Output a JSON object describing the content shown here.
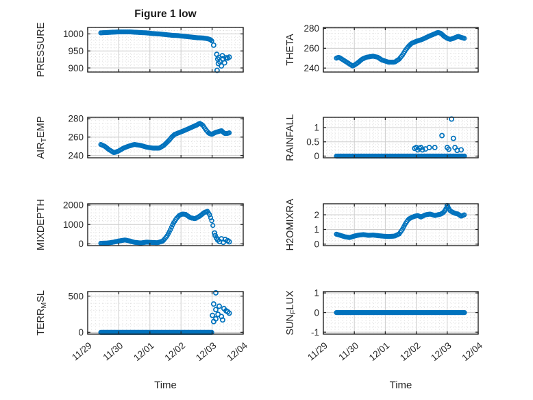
{
  "title": "Figure 1 low",
  "x_axis": {
    "label": "Time",
    "tick_labels": [
      "11/29",
      "11/30",
      "12/01",
      "12/02",
      "12/03",
      "12/04"
    ],
    "range_days": [
      0,
      5
    ],
    "minor_divisions_per_day": 8
  },
  "colors": {
    "marker": "#0072BD",
    "axis": "#262626",
    "major_grid": "#cccccc",
    "minor_grid": "#d9d9d9",
    "text": "#262626"
  },
  "chart_data": [
    {
      "id": "pressure",
      "type": "scatter",
      "ylabel": "PRESSURE",
      "ylabel_parts": [
        {
          "t": "PRESSURE"
        }
      ],
      "ylim": [
        888,
        1019
      ],
      "yticks": [
        900,
        950,
        1000
      ],
      "y_minor_step": 10,
      "dense": {
        "step_days": 0.035,
        "anchors": [
          [
            0.42,
            1003
          ],
          [
            0.6,
            1004
          ],
          [
            0.8,
            1005
          ],
          [
            1.0,
            1006
          ],
          [
            1.2,
            1006
          ],
          [
            1.35,
            1006
          ],
          [
            1.5,
            1005
          ],
          [
            1.7,
            1004
          ],
          [
            1.9,
            1003
          ],
          [
            2.1,
            1001
          ],
          [
            2.3,
            1000
          ],
          [
            2.5,
            998
          ],
          [
            2.7,
            996
          ],
          [
            2.9,
            995
          ],
          [
            3.1,
            993
          ],
          [
            3.3,
            991
          ],
          [
            3.5,
            989
          ],
          [
            3.7,
            988
          ],
          [
            3.85,
            986
          ],
          [
            3.95,
            983
          ],
          [
            4.02,
            977
          ]
        ]
      },
      "scatter_points": [
        [
          4.05,
          967
        ],
        [
          4.15,
          940
        ],
        [
          4.16,
          893
        ],
        [
          4.18,
          926
        ],
        [
          4.2,
          913
        ],
        [
          4.22,
          931
        ],
        [
          4.25,
          918
        ],
        [
          4.3,
          906
        ],
        [
          4.33,
          936
        ],
        [
          4.35,
          927
        ],
        [
          4.4,
          915
        ],
        [
          4.45,
          930
        ],
        [
          4.5,
          929
        ],
        [
          4.55,
          932
        ]
      ]
    },
    {
      "id": "theta",
      "type": "scatter",
      "ylabel": "THETA",
      "ylabel_parts": [
        {
          "t": "THETA"
        }
      ],
      "ylim": [
        236,
        281
      ],
      "yticks": [
        240,
        260,
        280
      ],
      "y_minor_step": 5,
      "dense": {
        "step_days": 0.035,
        "anchors": [
          [
            0.42,
            250
          ],
          [
            0.5,
            251
          ],
          [
            0.6,
            249
          ],
          [
            0.75,
            246
          ],
          [
            0.95,
            242
          ],
          [
            1.1,
            245
          ],
          [
            1.25,
            249
          ],
          [
            1.4,
            251
          ],
          [
            1.6,
            252
          ],
          [
            1.75,
            251
          ],
          [
            1.9,
            248
          ],
          [
            2.1,
            246
          ],
          [
            2.3,
            246
          ],
          [
            2.45,
            249
          ],
          [
            2.55,
            253
          ],
          [
            2.65,
            258
          ],
          [
            2.75,
            262
          ],
          [
            2.85,
            265
          ],
          [
            3.0,
            267
          ],
          [
            3.2,
            269
          ],
          [
            3.4,
            272
          ],
          [
            3.55,
            274
          ],
          [
            3.7,
            276
          ],
          [
            3.8,
            275
          ],
          [
            3.9,
            272
          ],
          [
            4.0,
            270
          ],
          [
            4.1,
            269
          ],
          [
            4.2,
            270
          ],
          [
            4.35,
            272
          ],
          [
            4.45,
            271
          ],
          [
            4.55,
            270
          ]
        ]
      },
      "scatter_points": []
    },
    {
      "id": "air-temp",
      "type": "scatter",
      "ylabel": "AIR_TEMP",
      "ylabel_parts": [
        {
          "t": "AIR"
        },
        {
          "t": "T",
          "sub": true
        },
        {
          "t": "EMP"
        }
      ],
      "ylim": [
        237.5,
        281.5
      ],
      "yticks": [
        240,
        260,
        280
      ],
      "y_minor_step": 5,
      "dense": {
        "step_days": 0.035,
        "anchors": [
          [
            0.42,
            252
          ],
          [
            0.55,
            250
          ],
          [
            0.7,
            246
          ],
          [
            0.85,
            243
          ],
          [
            1.0,
            245
          ],
          [
            1.15,
            248
          ],
          [
            1.3,
            250
          ],
          [
            1.5,
            252
          ],
          [
            1.7,
            251
          ],
          [
            1.9,
            249
          ],
          [
            2.1,
            248
          ],
          [
            2.3,
            248
          ],
          [
            2.45,
            251
          ],
          [
            2.6,
            256
          ],
          [
            2.7,
            260
          ],
          [
            2.8,
            263
          ],
          [
            2.95,
            265
          ],
          [
            3.1,
            267
          ],
          [
            3.3,
            270
          ],
          [
            3.5,
            273
          ],
          [
            3.6,
            275
          ],
          [
            3.7,
            273
          ],
          [
            3.8,
            268
          ],
          [
            3.9,
            264
          ],
          [
            4.0,
            263
          ],
          [
            4.1,
            265
          ],
          [
            4.2,
            266
          ],
          [
            4.3,
            267
          ],
          [
            4.4,
            264
          ],
          [
            4.5,
            264
          ],
          [
            4.58,
            265
          ]
        ]
      },
      "scatter_points": []
    },
    {
      "id": "rainfall",
      "type": "scatter",
      "ylabel": "RAINFALL",
      "ylabel_parts": [
        {
          "t": "RAINFALL"
        }
      ],
      "ylim": [
        -0.06,
        1.36
      ],
      "yticks": [
        0,
        0.5,
        1
      ],
      "y_minor_step": 0.1,
      "dense": {
        "step_days": 0.03,
        "anchors": [
          [
            0.42,
            0
          ],
          [
            4.58,
            0
          ]
        ]
      },
      "scatter_points": [
        [
          2.95,
          0.27
        ],
        [
          3.0,
          0.3
        ],
        [
          3.05,
          0.22
        ],
        [
          3.1,
          0.28
        ],
        [
          3.15,
          0.3
        ],
        [
          3.2,
          0.22
        ],
        [
          3.3,
          0.25
        ],
        [
          3.42,
          0.3
        ],
        [
          3.6,
          0.3
        ],
        [
          3.83,
          0.72
        ],
        [
          4.0,
          0.3
        ],
        [
          4.05,
          0.24
        ],
        [
          4.14,
          1.3
        ],
        [
          4.2,
          0.62
        ],
        [
          4.25,
          0.3
        ],
        [
          4.32,
          0.2
        ],
        [
          4.45,
          0.22
        ]
      ]
    },
    {
      "id": "mixdepth",
      "type": "scatter",
      "ylabel": "MIXDEPTH",
      "ylabel_parts": [
        {
          "t": "MIXDEPTH"
        }
      ],
      "ylim": [
        -90,
        2070
      ],
      "yticks": [
        0,
        1000,
        2000
      ],
      "y_minor_step": 200,
      "dense": {
        "step_days": 0.035,
        "anchors": [
          [
            0.42,
            30
          ],
          [
            0.6,
            40
          ],
          [
            0.8,
            80
          ],
          [
            1.0,
            150
          ],
          [
            1.2,
            200
          ],
          [
            1.35,
            150
          ],
          [
            1.5,
            80
          ],
          [
            1.7,
            50
          ],
          [
            1.9,
            90
          ],
          [
            2.1,
            70
          ],
          [
            2.25,
            60
          ],
          [
            2.42,
            150
          ],
          [
            2.55,
            400
          ],
          [
            2.65,
            700
          ],
          [
            2.75,
            1050
          ],
          [
            2.85,
            1300
          ],
          [
            2.95,
            1480
          ],
          [
            3.05,
            1540
          ],
          [
            3.15,
            1520
          ],
          [
            3.3,
            1350
          ],
          [
            3.45,
            1300
          ],
          [
            3.6,
            1430
          ],
          [
            3.75,
            1620
          ],
          [
            3.85,
            1680
          ],
          [
            3.92,
            1500
          ],
          [
            4.0,
            1150
          ],
          [
            4.05,
            750
          ]
        ]
      },
      "scatter_points": [
        [
          4.08,
          560
        ],
        [
          4.1,
          430
        ],
        [
          4.14,
          300
        ],
        [
          4.18,
          200
        ],
        [
          4.24,
          120
        ],
        [
          4.3,
          260
        ],
        [
          4.36,
          80
        ],
        [
          4.42,
          230
        ],
        [
          4.5,
          170
        ],
        [
          4.55,
          110
        ]
      ]
    },
    {
      "id": "h2omixra",
      "type": "scatter",
      "ylabel": "H2OMIXRA",
      "ylabel_parts": [
        {
          "t": "H2OMIXRA"
        }
      ],
      "ylim": [
        -0.1,
        2.75
      ],
      "yticks": [
        0,
        1,
        2
      ],
      "y_minor_step": 0.25,
      "dense": {
        "step_days": 0.035,
        "anchors": [
          [
            0.42,
            0.68
          ],
          [
            0.55,
            0.6
          ],
          [
            0.7,
            0.5
          ],
          [
            0.85,
            0.45
          ],
          [
            1.0,
            0.55
          ],
          [
            1.15,
            0.62
          ],
          [
            1.3,
            0.65
          ],
          [
            1.45,
            0.6
          ],
          [
            1.6,
            0.62
          ],
          [
            1.75,
            0.58
          ],
          [
            1.9,
            0.55
          ],
          [
            2.1,
            0.52
          ],
          [
            2.3,
            0.55
          ],
          [
            2.45,
            0.7
          ],
          [
            2.55,
            1.0
          ],
          [
            2.65,
            1.4
          ],
          [
            2.75,
            1.7
          ],
          [
            2.85,
            1.82
          ],
          [
            2.95,
            1.9
          ],
          [
            3.05,
            1.95
          ],
          [
            3.15,
            1.85
          ],
          [
            3.3,
            2.0
          ],
          [
            3.45,
            2.05
          ],
          [
            3.6,
            1.95
          ],
          [
            3.7,
            2.0
          ],
          [
            3.8,
            2.05
          ],
          [
            3.9,
            2.2
          ],
          [
            3.98,
            2.5
          ],
          [
            4.03,
            2.55
          ],
          [
            4.08,
            2.3
          ],
          [
            4.15,
            2.2
          ],
          [
            4.25,
            2.1
          ],
          [
            4.35,
            2.05
          ],
          [
            4.45,
            1.9
          ],
          [
            4.55,
            2.0
          ]
        ]
      },
      "scatter_points": [
        [
          4.0,
          2.62
        ]
      ]
    },
    {
      "id": "terr-msl",
      "type": "scatter",
      "ylabel": "TERR_MSL",
      "ylabel_parts": [
        {
          "t": "TERR"
        },
        {
          "t": "M",
          "sub": true
        },
        {
          "t": "SL"
        }
      ],
      "ylim": [
        -25,
        562
      ],
      "yticks": [
        0,
        500
      ],
      "y_minor_step": 100,
      "dense": {
        "step_days": 0.03,
        "anchors": [
          [
            0.42,
            0
          ],
          [
            4.0,
            0
          ]
        ]
      },
      "scatter_points": [
        [
          4.01,
          233
        ],
        [
          4.05,
          391
        ],
        [
          4.05,
          148
        ],
        [
          4.12,
          545
        ],
        [
          4.12,
          313
        ],
        [
          4.12,
          186
        ],
        [
          4.19,
          249
        ],
        [
          4.23,
          360
        ],
        [
          4.3,
          218
        ],
        [
          4.34,
          171
        ],
        [
          4.38,
          328
        ],
        [
          4.45,
          297
        ],
        [
          4.5,
          285
        ],
        [
          4.55,
          265
        ]
      ]
    },
    {
      "id": "sun-flux",
      "type": "scatter",
      "ylabel": "SUN_FLUX",
      "ylabel_parts": [
        {
          "t": "SUN"
        },
        {
          "t": "F",
          "sub": true
        },
        {
          "t": "LUX"
        }
      ],
      "ylim": [
        -1.1,
        1.07
      ],
      "yticks": [
        -1,
        0,
        1
      ],
      "y_minor_step": 0.25,
      "dense": {
        "step_days": 0.03,
        "anchors": [
          [
            0.42,
            0
          ],
          [
            4.58,
            0
          ]
        ]
      },
      "scatter_points": []
    }
  ]
}
